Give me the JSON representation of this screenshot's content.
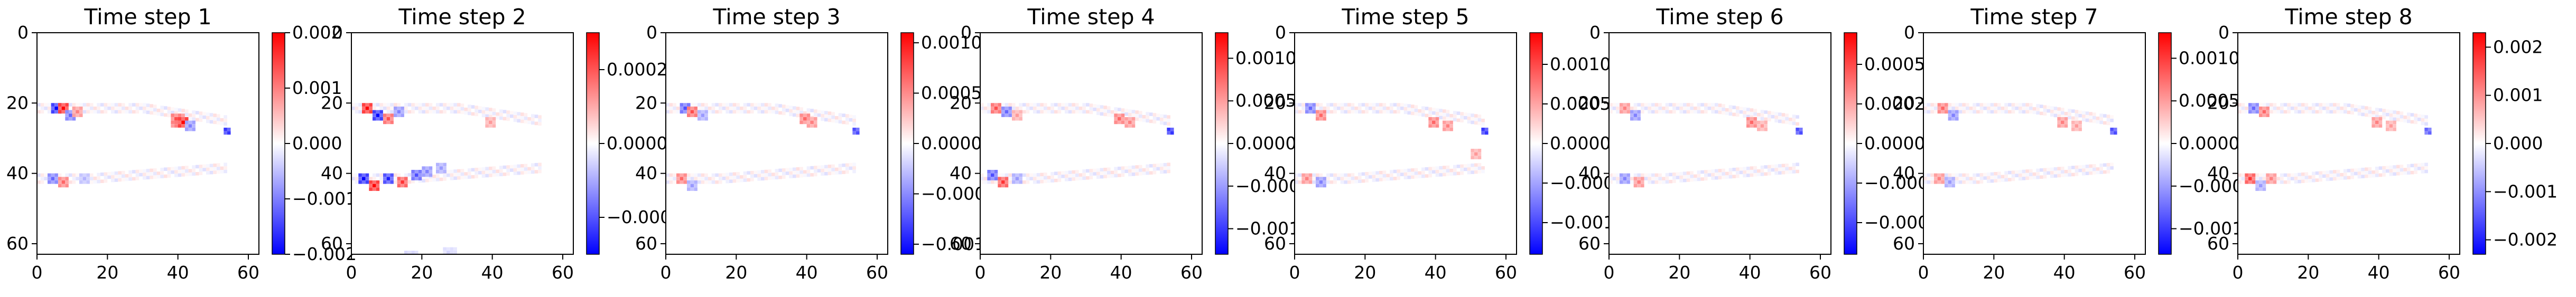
{
  "chart_data": [
    {
      "type": "heatmap",
      "title": "Time step 1",
      "x_ticks": [
        "0",
        "20",
        "40",
        "60"
      ],
      "y_ticks": [
        "0",
        "20",
        "40",
        "60"
      ],
      "xlim": [
        0,
        63
      ],
      "ylim": [
        63,
        0
      ],
      "colormap": "bwr",
      "colorbar": {
        "min": -0.002,
        "max": 0.002,
        "ticks": [
          {
            "v": 0.002,
            "label": "0.002"
          },
          {
            "v": 0.001,
            "label": "0.001"
          },
          {
            "v": 0,
            "label": "0.000"
          },
          {
            "v": -0.001,
            "label": "−0.001"
          },
          {
            "v": -0.002,
            "label": "−0.002"
          }
        ]
      },
      "features": [
        {
          "x": 4,
          "y": 20,
          "v": -1,
          "s": 3
        },
        {
          "x": 6,
          "y": 20,
          "v": 1,
          "s": 3
        },
        {
          "x": 8,
          "y": 22,
          "v": -0.6,
          "s": 3
        },
        {
          "x": 10,
          "y": 21,
          "v": 0.5,
          "s": 3
        },
        {
          "x": 38,
          "y": 23,
          "v": 0.8,
          "s": 4
        },
        {
          "x": 40,
          "y": 24,
          "v": 1,
          "s": 3
        },
        {
          "x": 42,
          "y": 25,
          "v": -0.5,
          "s": 3
        },
        {
          "x": 53,
          "y": 27,
          "v": -0.9,
          "s": 2
        },
        {
          "x": 3,
          "y": 40,
          "v": -0.6,
          "s": 3
        },
        {
          "x": 6,
          "y": 41,
          "v": 0.6,
          "s": 3
        },
        {
          "x": 12,
          "y": 40,
          "v": -0.3,
          "s": 3
        }
      ]
    },
    {
      "type": "heatmap",
      "title": "Time step 2",
      "x_ticks": [
        "0",
        "20",
        "40",
        "60"
      ],
      "y_ticks": [
        "0",
        "20",
        "40",
        "60"
      ],
      "xlim": [
        0,
        63
      ],
      "ylim": [
        63,
        0
      ],
      "colormap": "bwr",
      "colorbar": {
        "min": -0.0003,
        "max": 0.0003,
        "ticks": [
          {
            "v": 0.0002,
            "label": "0.0002"
          },
          {
            "v": 0,
            "label": "0.0000"
          },
          {
            "v": -0.0002,
            "label": "−0.0002"
          }
        ]
      },
      "features": [
        {
          "x": 3,
          "y": 20,
          "v": 1,
          "s": 3
        },
        {
          "x": 6,
          "y": 22,
          "v": -1,
          "s": 3
        },
        {
          "x": 9,
          "y": 23,
          "v": 0.7,
          "s": 3
        },
        {
          "x": 12,
          "y": 21,
          "v": -0.5,
          "s": 3
        },
        {
          "x": 2,
          "y": 40,
          "v": -1,
          "s": 3
        },
        {
          "x": 5,
          "y": 42,
          "v": 1,
          "s": 3
        },
        {
          "x": 9,
          "y": 40,
          "v": -0.9,
          "s": 3
        },
        {
          "x": 13,
          "y": 41,
          "v": 0.8,
          "s": 3
        },
        {
          "x": 17,
          "y": 39,
          "v": -0.7,
          "s": 3
        },
        {
          "x": 20,
          "y": 38,
          "v": -0.5,
          "s": 3
        },
        {
          "x": 24,
          "y": 37,
          "v": -0.4,
          "s": 3
        },
        {
          "x": 38,
          "y": 24,
          "v": 0.4,
          "s": 3
        },
        {
          "x": 15,
          "y": 62,
          "v": -0.25,
          "s": 4
        },
        {
          "x": 26,
          "y": 61,
          "v": -0.2,
          "s": 4
        }
      ]
    },
    {
      "type": "heatmap",
      "title": "Time step 3",
      "x_ticks": [
        "0",
        "20",
        "40",
        "60"
      ],
      "y_ticks": [
        "0",
        "20",
        "40",
        "60"
      ],
      "xlim": [
        0,
        63
      ],
      "ylim": [
        63,
        0
      ],
      "colormap": "bwr",
      "colorbar": {
        "min": -0.0011,
        "max": 0.0011,
        "ticks": [
          {
            "v": 0.001,
            "label": "0.0010"
          },
          {
            "v": 0.0005,
            "label": "0.0005"
          },
          {
            "v": 0,
            "label": "0.0000"
          },
          {
            "v": -0.0005,
            "label": "−0.0005"
          },
          {
            "v": -0.001,
            "label": "−0.0010"
          }
        ]
      },
      "features": [
        {
          "x": 4,
          "y": 20,
          "v": -0.7,
          "s": 3
        },
        {
          "x": 6,
          "y": 21,
          "v": 0.7,
          "s": 3
        },
        {
          "x": 9,
          "y": 22,
          "v": -0.4,
          "s": 3
        },
        {
          "x": 38,
          "y": 23,
          "v": 0.6,
          "s": 3
        },
        {
          "x": 40,
          "y": 24,
          "v": 0.5,
          "s": 3
        },
        {
          "x": 53,
          "y": 27,
          "v": -0.8,
          "s": 2
        },
        {
          "x": 3,
          "y": 40,
          "v": 0.6,
          "s": 3
        },
        {
          "x": 6,
          "y": 42,
          "v": -0.4,
          "s": 3
        }
      ]
    },
    {
      "type": "heatmap",
      "title": "Time step 4",
      "x_ticks": [
        "0",
        "20",
        "40",
        "60"
      ],
      "y_ticks": [
        "0",
        "20",
        "40",
        "60"
      ],
      "xlim": [
        0,
        63
      ],
      "ylim": [
        63,
        0
      ],
      "colormap": "bwr",
      "colorbar": {
        "min": -0.0013,
        "max": 0.0013,
        "ticks": [
          {
            "v": 0.001,
            "label": "0.0010"
          },
          {
            "v": 0.0005,
            "label": "0.0005"
          },
          {
            "v": 0,
            "label": "0.0000"
          },
          {
            "v": -0.0005,
            "label": "−0.0005"
          },
          {
            "v": -0.001,
            "label": "−0.0010"
          }
        ]
      },
      "features": [
        {
          "x": 3,
          "y": 20,
          "v": 0.7,
          "s": 3
        },
        {
          "x": 6,
          "y": 21,
          "v": -0.6,
          "s": 3
        },
        {
          "x": 9,
          "y": 22,
          "v": 0.4,
          "s": 3
        },
        {
          "x": 38,
          "y": 23,
          "v": 0.6,
          "s": 3
        },
        {
          "x": 41,
          "y": 24,
          "v": 0.5,
          "s": 3
        },
        {
          "x": 53,
          "y": 27,
          "v": -0.9,
          "s": 2
        },
        {
          "x": 2,
          "y": 39,
          "v": -0.7,
          "s": 3
        },
        {
          "x": 5,
          "y": 41,
          "v": 0.8,
          "s": 3
        },
        {
          "x": 9,
          "y": 40,
          "v": -0.4,
          "s": 3
        }
      ]
    },
    {
      "type": "heatmap",
      "title": "Time step 5",
      "x_ticks": [
        "0",
        "20",
        "40",
        "60"
      ],
      "y_ticks": [
        "0",
        "20",
        "40",
        "60"
      ],
      "xlim": [
        0,
        63
      ],
      "ylim": [
        63,
        0
      ],
      "colormap": "bwr",
      "colorbar": {
        "min": -0.0014,
        "max": 0.0014,
        "ticks": [
          {
            "v": 0.001,
            "label": "0.0010"
          },
          {
            "v": 0.0005,
            "label": "0.0005"
          },
          {
            "v": 0,
            "label": "0.0000"
          },
          {
            "v": -0.0005,
            "label": "−0.0005"
          },
          {
            "v": -0.001,
            "label": "−0.0010"
          }
        ]
      },
      "features": [
        {
          "x": 3,
          "y": 20,
          "v": -0.6,
          "s": 3
        },
        {
          "x": 6,
          "y": 22,
          "v": 0.6,
          "s": 3
        },
        {
          "x": 38,
          "y": 24,
          "v": 0.6,
          "s": 3
        },
        {
          "x": 42,
          "y": 25,
          "v": 0.5,
          "s": 3
        },
        {
          "x": 53,
          "y": 27,
          "v": -0.9,
          "s": 2
        },
        {
          "x": 50,
          "y": 33,
          "v": 0.4,
          "s": 3
        },
        {
          "x": 2,
          "y": 40,
          "v": 0.5,
          "s": 3
        },
        {
          "x": 6,
          "y": 41,
          "v": -0.5,
          "s": 3
        }
      ]
    },
    {
      "type": "heatmap",
      "title": "Time step 6",
      "x_ticks": [
        "0",
        "20",
        "40",
        "60"
      ],
      "y_ticks": [
        "0",
        "20",
        "40",
        "60"
      ],
      "xlim": [
        0,
        63
      ],
      "ylim": [
        63,
        0
      ],
      "colormap": "bwr",
      "colorbar": {
        "min": -0.0007,
        "max": 0.0007,
        "ticks": [
          {
            "v": 0.0005,
            "label": "0.00050"
          },
          {
            "v": 0.00025,
            "label": "0.00025"
          },
          {
            "v": 0,
            "label": "0.00000"
          },
          {
            "v": -0.00025,
            "label": "−0.00025"
          },
          {
            "v": -0.0005,
            "label": "−0.00050"
          }
        ]
      },
      "features": [
        {
          "x": 3,
          "y": 20,
          "v": 0.5,
          "s": 3
        },
        {
          "x": 6,
          "y": 22,
          "v": -0.5,
          "s": 3
        },
        {
          "x": 39,
          "y": 24,
          "v": 0.6,
          "s": 3
        },
        {
          "x": 42,
          "y": 25,
          "v": 0.4,
          "s": 3
        },
        {
          "x": 53,
          "y": 27,
          "v": -0.8,
          "s": 2
        },
        {
          "x": 3,
          "y": 40,
          "v": -0.5,
          "s": 3
        },
        {
          "x": 7,
          "y": 41,
          "v": 0.5,
          "s": 3
        }
      ]
    },
    {
      "type": "heatmap",
      "title": "Time step 7",
      "x_ticks": [
        "0",
        "20",
        "40",
        "60"
      ],
      "y_ticks": [
        "0",
        "20",
        "40",
        "60"
      ],
      "xlim": [
        0,
        63
      ],
      "ylim": [
        63,
        0
      ],
      "colormap": "bwr",
      "colorbar": {
        "min": -0.0013,
        "max": 0.0013,
        "ticks": [
          {
            "v": 0.001,
            "label": "0.0010"
          },
          {
            "v": 0.0005,
            "label": "0.0005"
          },
          {
            "v": 0,
            "label": "0.0000"
          },
          {
            "v": -0.0005,
            "label": "−0.0005"
          },
          {
            "v": -0.001,
            "label": "−0.0010"
          }
        ]
      },
      "features": [
        {
          "x": 4,
          "y": 20,
          "v": 0.6,
          "s": 3
        },
        {
          "x": 7,
          "y": 22,
          "v": -0.5,
          "s": 3
        },
        {
          "x": 38,
          "y": 24,
          "v": 0.5,
          "s": 3
        },
        {
          "x": 42,
          "y": 25,
          "v": 0.4,
          "s": 3
        },
        {
          "x": 53,
          "y": 27,
          "v": -0.8,
          "s": 2
        },
        {
          "x": 3,
          "y": 40,
          "v": 0.5,
          "s": 3
        },
        {
          "x": 6,
          "y": 41,
          "v": -0.4,
          "s": 3
        }
      ]
    },
    {
      "type": "heatmap",
      "title": "Time step 8",
      "x_ticks": [
        "0",
        "20",
        "40",
        "60"
      ],
      "y_ticks": [
        "0",
        "20",
        "40",
        "60"
      ],
      "xlim": [
        0,
        63
      ],
      "ylim": [
        63,
        0
      ],
      "colormap": "bwr",
      "colorbar": {
        "min": -0.0023,
        "max": 0.0023,
        "ticks": [
          {
            "v": 0.002,
            "label": "0.002"
          },
          {
            "v": 0.001,
            "label": "0.001"
          },
          {
            "v": 0,
            "label": "0.000"
          },
          {
            "v": -0.001,
            "label": "−0.001"
          },
          {
            "v": -0.002,
            "label": "−0.002"
          }
        ]
      },
      "features": [
        {
          "x": 3,
          "y": 20,
          "v": -0.6,
          "s": 3
        },
        {
          "x": 6,
          "y": 21,
          "v": 0.6,
          "s": 3
        },
        {
          "x": 38,
          "y": 24,
          "v": 0.5,
          "s": 3
        },
        {
          "x": 42,
          "y": 25,
          "v": 0.4,
          "s": 3
        },
        {
          "x": 53,
          "y": 27,
          "v": -0.7,
          "s": 2
        },
        {
          "x": 2,
          "y": 40,
          "v": 0.8,
          "s": 3
        },
        {
          "x": 5,
          "y": 42,
          "v": -0.4,
          "s": 3
        },
        {
          "x": 8,
          "y": 40,
          "v": 0.5,
          "s": 3
        }
      ]
    }
  ]
}
